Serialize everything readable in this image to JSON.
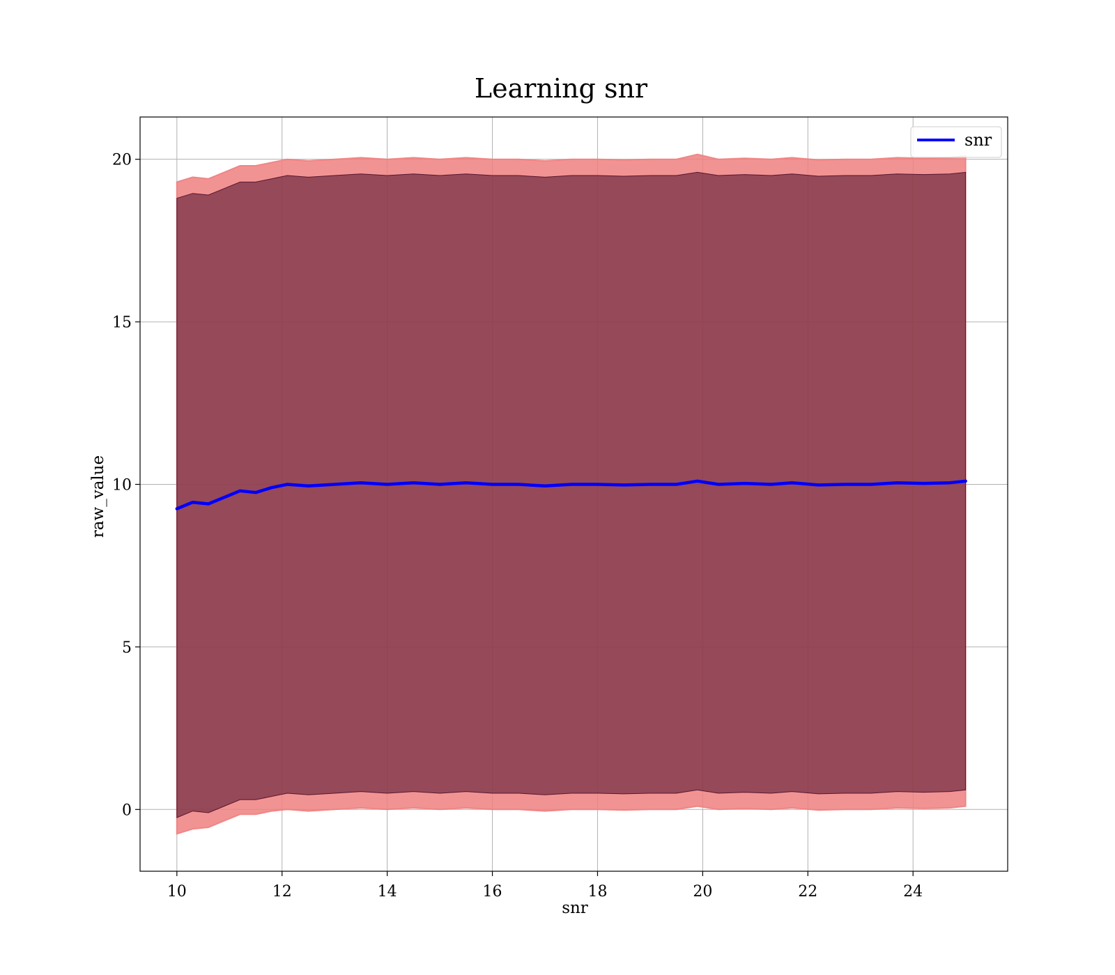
{
  "chart_data": {
    "type": "line",
    "title": "Learning snr",
    "xlabel": "snr",
    "ylabel": "raw_value",
    "xlim": [
      9.3,
      25.8
    ],
    "ylim": [
      -1.9,
      21.3
    ],
    "xticks": [
      10,
      12,
      14,
      16,
      18,
      20,
      22,
      24
    ],
    "yticks": [
      0,
      5,
      10,
      15,
      20
    ],
    "grid": true,
    "legend_position": "top-right",
    "series": [
      {
        "name": "snr",
        "color": "#0000ff",
        "x": [
          10.0,
          10.3,
          10.6,
          10.9,
          11.2,
          11.5,
          11.8,
          12.1,
          12.5,
          13.0,
          13.5,
          14.0,
          14.5,
          15.0,
          15.5,
          16.0,
          16.5,
          17.0,
          17.5,
          18.0,
          18.5,
          19.0,
          19.5,
          19.9,
          20.3,
          20.8,
          21.3,
          21.7,
          22.2,
          22.7,
          23.2,
          23.7,
          24.2,
          24.7,
          25.0
        ],
        "y": [
          9.25,
          9.45,
          9.4,
          9.6,
          9.8,
          9.75,
          9.9,
          10.0,
          9.95,
          10.0,
          10.05,
          10.0,
          10.05,
          10.0,
          10.05,
          10.0,
          10.0,
          9.95,
          10.0,
          10.0,
          9.98,
          10.0,
          10.0,
          10.1,
          10.0,
          10.03,
          10.0,
          10.05,
          9.98,
          10.0,
          10.0,
          10.05,
          10.03,
          10.05,
          10.1
        ]
      }
    ],
    "bands": [
      {
        "color": "#f08080",
        "lower": [
          -0.75,
          -0.6,
          -0.55,
          -0.35,
          -0.15,
          -0.15,
          -0.05,
          0.0,
          -0.05,
          0.0,
          0.05,
          0.0,
          0.05,
          0.0,
          0.05,
          0.0,
          0.0,
          -0.05,
          0.0,
          0.0,
          -0.02,
          0.0,
          0.0,
          0.1,
          0.0,
          0.03,
          0.0,
          0.05,
          -0.02,
          0.0,
          0.0,
          0.05,
          0.03,
          0.05,
          0.1
        ],
        "upper": [
          19.3,
          19.45,
          19.4,
          19.6,
          19.8,
          19.8,
          19.9,
          20.0,
          19.95,
          20.0,
          20.05,
          20.0,
          20.05,
          20.0,
          20.05,
          20.0,
          20.0,
          19.95,
          20.0,
          20.0,
          19.98,
          20.0,
          20.0,
          20.15,
          20.0,
          20.03,
          20.0,
          20.05,
          19.98,
          20.0,
          20.0,
          20.05,
          20.03,
          20.05,
          20.1
        ]
      },
      {
        "color": "#4b0d28",
        "lower": [
          -0.25,
          -0.05,
          -0.1,
          0.1,
          0.3,
          0.3,
          0.4,
          0.5,
          0.45,
          0.5,
          0.55,
          0.5,
          0.55,
          0.5,
          0.55,
          0.5,
          0.5,
          0.45,
          0.5,
          0.5,
          0.48,
          0.5,
          0.5,
          0.6,
          0.5,
          0.53,
          0.5,
          0.55,
          0.48,
          0.5,
          0.5,
          0.55,
          0.53,
          0.55,
          0.6
        ],
        "upper": [
          18.8,
          18.95,
          18.9,
          19.1,
          19.3,
          19.3,
          19.4,
          19.5,
          19.45,
          19.5,
          19.55,
          19.5,
          19.55,
          19.5,
          19.55,
          19.5,
          19.5,
          19.45,
          19.5,
          19.5,
          19.48,
          19.5,
          19.5,
          19.6,
          19.5,
          19.53,
          19.5,
          19.55,
          19.48,
          19.5,
          19.5,
          19.55,
          19.53,
          19.55,
          19.6
        ]
      }
    ]
  }
}
